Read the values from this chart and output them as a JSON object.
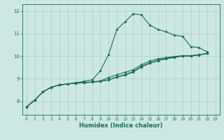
{
  "xlabel": "Humidex (Indice chaleur)",
  "xlim": [
    -0.5,
    23.5
  ],
  "ylim": [
    7.4,
    12.3
  ],
  "yticks": [
    8,
    9,
    10,
    11,
    12
  ],
  "xticks": [
    0,
    1,
    2,
    3,
    4,
    5,
    6,
    7,
    8,
    9,
    10,
    11,
    12,
    13,
    14,
    15,
    16,
    17,
    18,
    19,
    20,
    21,
    22,
    23
  ],
  "bg_color": "#cce8e0",
  "grid_color": "#aacfc7",
  "line_color": "#1a6b5a",
  "series": [
    [
      7.75,
      8.05,
      8.42,
      8.62,
      8.72,
      8.77,
      8.82,
      8.88,
      8.95,
      9.35,
      10.08,
      11.18,
      11.52,
      11.88,
      11.82,
      11.38,
      11.18,
      11.08,
      10.92,
      10.88,
      10.42,
      10.38,
      10.18
    ],
    [
      7.75,
      8.05,
      8.42,
      8.62,
      8.72,
      8.77,
      8.8,
      8.83,
      8.86,
      8.9,
      9.05,
      9.18,
      9.28,
      9.4,
      9.62,
      9.78,
      9.88,
      9.93,
      9.98,
      10.02,
      10.02,
      10.06,
      10.12
    ],
    [
      7.75,
      8.05,
      8.42,
      8.62,
      8.72,
      8.77,
      8.8,
      8.82,
      8.85,
      8.88,
      8.95,
      9.08,
      9.18,
      9.32,
      9.55,
      9.7,
      9.82,
      9.9,
      9.96,
      10.01,
      10.01,
      10.06,
      10.12
    ],
    [
      7.75,
      8.05,
      8.42,
      8.62,
      8.72,
      8.77,
      8.8,
      8.82,
      8.85,
      8.88,
      8.95,
      9.07,
      9.16,
      9.3,
      9.52,
      9.68,
      9.8,
      9.88,
      9.94,
      10.0,
      10.0,
      10.05,
      10.12
    ]
  ]
}
